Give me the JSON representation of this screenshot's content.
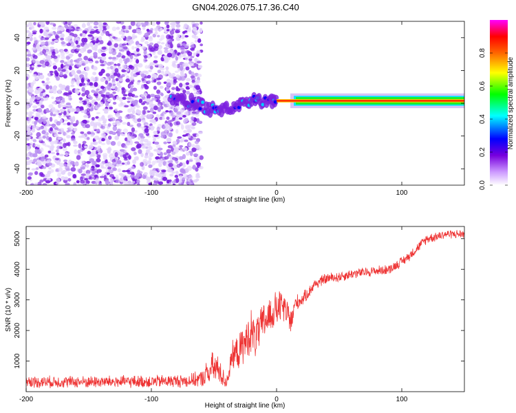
{
  "title": "GN04.2026.075.17.36.C40",
  "chart_data": [
    {
      "type": "heatmap",
      "title": "GN04.2026.075.17.36.C40",
      "xlabel": "Height of straight line (km)",
      "ylabel": "Frequency (Hz)",
      "xlim": [
        -200,
        150
      ],
      "ylim": [
        -50,
        50
      ],
      "x_ticks": [
        -200,
        -100,
        0,
        100
      ],
      "y_ticks": [
        -40,
        -20,
        0,
        20,
        40
      ],
      "colorbar": {
        "label": "Normalized spectral amplitude",
        "range": [
          0,
          1
        ],
        "ticks": [
          "0.0",
          "0.2",
          "0.4",
          "0.6",
          "0.8"
        ],
        "colors": [
          "#ffffff",
          "#cc99ff",
          "#6600cc",
          "#0000ff",
          "#00ffff",
          "#00ff00",
          "#ffff00",
          "#ff6600",
          "#ff0000",
          "#ff00ff"
        ]
      },
      "features": [
        {
          "name": "noise scatter",
          "x_range": [
            -200,
            -60
          ],
          "freq_range": [
            -50,
            50
          ],
          "amplitude": 0.15
        },
        {
          "name": "converging signal",
          "x": [
            -85,
            -75,
            -65,
            -55,
            -45,
            -35,
            -25,
            -15,
            -5,
            0
          ],
          "freq": [
            3,
            2,
            0,
            -3,
            -5,
            -3,
            0,
            2,
            1,
            2
          ],
          "amplitude": 0.35
        },
        {
          "name": "carrier line",
          "x_range": [
            0,
            150
          ],
          "freq": 1.5,
          "amplitude": 0.9,
          "width_hz": 5
        }
      ]
    },
    {
      "type": "line",
      "xlabel": "Height of straight line (km)",
      "ylabel": "SNR (10 * v/v)",
      "xlim": [
        -200,
        150
      ],
      "ylim": [
        0,
        5400
      ],
      "x_ticks": [
        -200,
        -100,
        0,
        100
      ],
      "y_ticks": [
        1000,
        2000,
        3000,
        4000,
        5000
      ],
      "series": [
        {
          "name": "SNR",
          "color": "#ee3333",
          "x": [
            -200,
            -150,
            -100,
            -70,
            -60,
            -55,
            -50,
            -45,
            -42,
            -40,
            -35,
            -30,
            -25,
            -20,
            -18,
            -15,
            -10,
            -5,
            0,
            5,
            10,
            12,
            15,
            20,
            25,
            30,
            40,
            50,
            60,
            70,
            80,
            90,
            100,
            105,
            110,
            115,
            120,
            125,
            130,
            135,
            140,
            145,
            150
          ],
          "y": [
            320,
            320,
            330,
            360,
            420,
            600,
            800,
            650,
            400,
            300,
            1200,
            1300,
            1600,
            2000,
            1700,
            1900,
            2300,
            2500,
            2700,
            2800,
            2400,
            2300,
            2900,
            3000,
            3200,
            3500,
            3700,
            3750,
            3850,
            3900,
            3950,
            4000,
            4250,
            4400,
            4600,
            4800,
            5000,
            5050,
            5100,
            5150,
            5150,
            5150,
            5150
          ],
          "noise_amplitude": [
            220,
            220,
            230,
            240,
            300,
            500,
            650,
            500,
            300,
            250,
            500,
            650,
            700,
            800,
            900,
            700,
            700,
            700,
            650,
            600,
            550,
            500,
            300,
            250,
            220,
            200,
            200,
            200,
            180,
            180,
            180,
            180,
            180,
            180,
            180,
            180,
            180,
            180,
            180,
            160,
            160,
            160,
            160
          ]
        }
      ]
    }
  ]
}
